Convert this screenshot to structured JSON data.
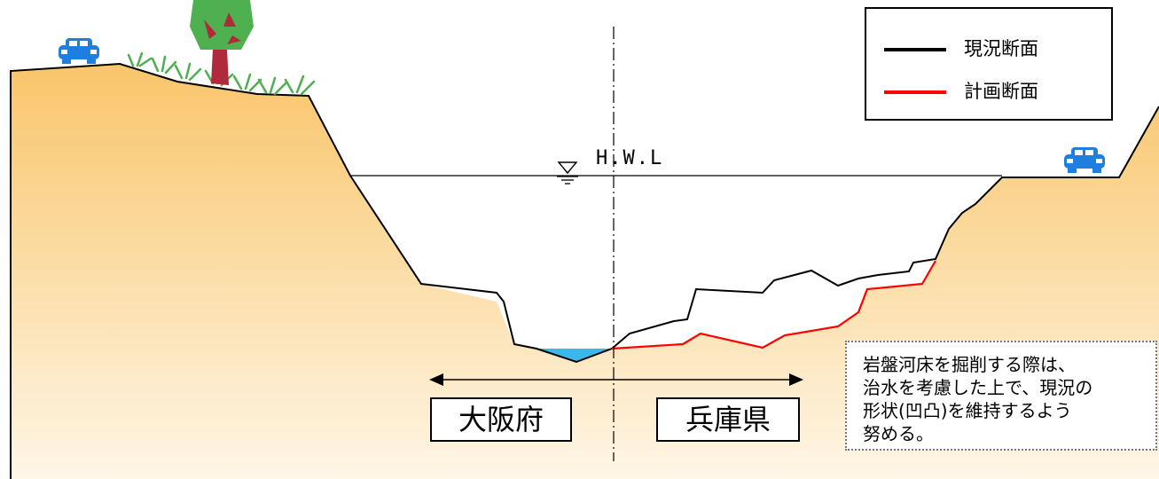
{
  "diagram": {
    "water_level_label": "H.W.L",
    "legend": {
      "current_section": {
        "label": "現況断面",
        "color": "#000000"
      },
      "planned_section": {
        "label": "計画断面",
        "color": "#ff0000"
      }
    },
    "regions": {
      "left": "大阪府",
      "right": "兵庫県"
    },
    "note": {
      "lines": [
        "岩盤河床を掘削する際は、",
        "治水を考慮した上で、現況の",
        "形状(凹凸)を維持するよう",
        "努める。"
      ]
    },
    "colors": {
      "ground_top": "#f9c56a",
      "ground_bottom": "#fef6e6",
      "water": "#3db6e8",
      "car": "#1f7fe0",
      "tree_trunk": "#b02a3c",
      "tree_crown": "#4fb04f",
      "grass": "#4caf50"
    },
    "icons": [
      "car-icon",
      "tree-icon",
      "grass-icon",
      "water-level-icon",
      "double-arrow-icon"
    ]
  }
}
